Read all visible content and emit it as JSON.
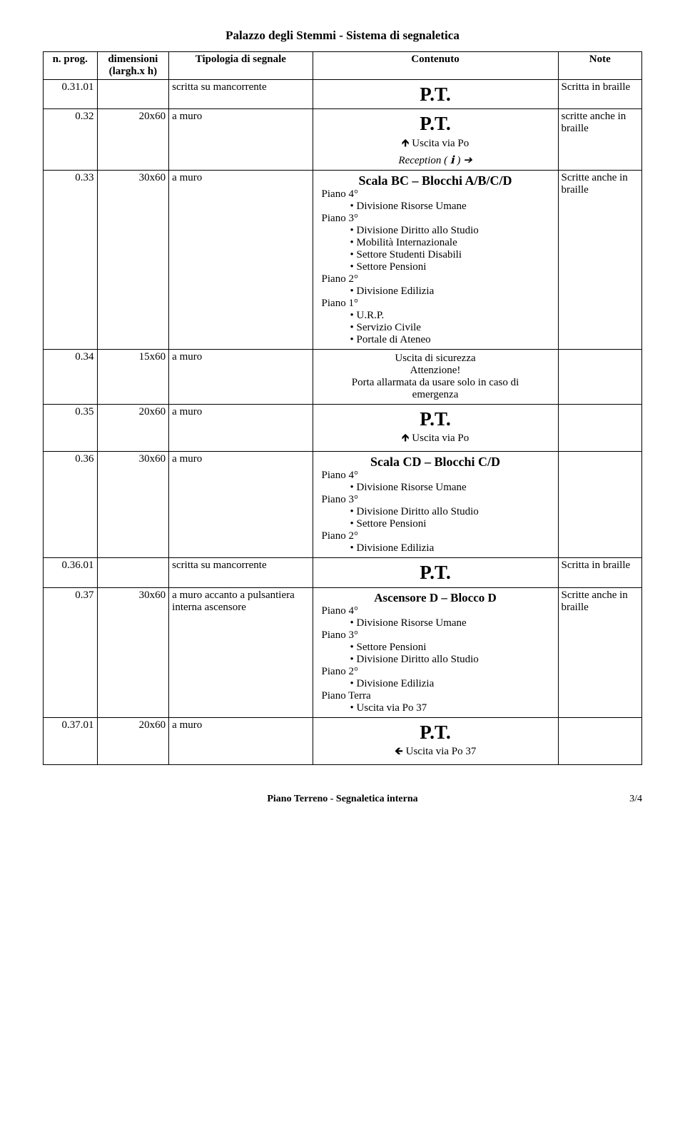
{
  "doc_title": "Palazzo degli Stemmi - Sistema di segnaletica",
  "headers": {
    "n": "n. prog.",
    "dim_a": "dimensioni",
    "dim_b": "(largh.x h)",
    "tip": "Tipologia di segnale",
    "cont": "Contenuto",
    "note": "Note"
  },
  "rows": [
    {
      "n": "0.31.01",
      "dim": "",
      "tip": "scritta su mancorrente",
      "content": {
        "pt": "P.T."
      },
      "note": "Scritta in braille"
    },
    {
      "n": "0.32",
      "dim": "20x60",
      "tip": "a muro",
      "content": {
        "pt": "P.T.",
        "lines": [
          {
            "text": "🡹 Uscita via Po",
            "align": "center"
          },
          {
            "text": "Reception ( ℹ ) ➔",
            "align": "center",
            "style": "font-style:italic;"
          }
        ]
      },
      "note": "scritte anche in braille"
    },
    {
      "n": "0.33",
      "dim": "30x60",
      "tip": "a muro",
      "content": {
        "scala": "Scala BC – Blocchi A/B/C/D",
        "blocks": [
          {
            "piano": "Piano 4°",
            "items": [
              "• Divisione Risorse Umane"
            ]
          },
          {
            "piano": "Piano 3°",
            "items": [
              "• Divisione Diritto allo Studio",
              "• Mobilità Internazionale",
              "• Settore Studenti Disabili",
              "• Settore Pensioni"
            ]
          },
          {
            "piano": "Piano 2°",
            "items": [
              "• Divisione Edilizia"
            ]
          },
          {
            "piano": "Piano 1°",
            "items": [
              "• U.R.P.",
              "• Servizio Civile",
              "• Portale di Ateneo"
            ]
          }
        ]
      },
      "note": "Scritte anche in braille"
    },
    {
      "n": "0.34",
      "dim": "15x60",
      "tip": "a muro",
      "content": {
        "center_lines": [
          "Uscita di sicurezza",
          "Attenzione!",
          "Porta allarmata da usare solo in caso di",
          "emergenza"
        ]
      },
      "note": ""
    },
    {
      "n": "0.35",
      "dim": "20x60",
      "tip": "a muro",
      "content": {
        "pt": "P.T.",
        "lines": [
          {
            "text": "🡹 Uscita via Po",
            "align": "center"
          }
        ]
      },
      "note": ""
    },
    {
      "n": "0.36",
      "dim": "30x60",
      "tip": "a muro",
      "content": {
        "scala": "Scala CD – Blocchi C/D",
        "blocks": [
          {
            "piano": "Piano 4°",
            "items": [
              "• Divisione Risorse Umane"
            ]
          },
          {
            "piano": "Piano 3°",
            "items": [
              "• Divisione Diritto allo Studio",
              "• Settore Pensioni"
            ]
          },
          {
            "piano": "Piano 2°",
            "items": [
              "• Divisione Edilizia"
            ]
          }
        ]
      },
      "note": ""
    },
    {
      "n": "0.36.01",
      "dim": "",
      "tip": "scritta su mancorrente",
      "content": {
        "pt": "P.T."
      },
      "note": "Scritta in braille"
    },
    {
      "n": "0.37",
      "dim": "30x60",
      "tip": "a muro accanto a pulsantiera interna ascensore",
      "content": {
        "asc": "Ascensore D – Blocco D",
        "blocks": [
          {
            "piano": "Piano 4°",
            "items": [
              "• Divisione Risorse Umane"
            ]
          },
          {
            "piano": "Piano 3°",
            "items": [
              "• Settore Pensioni",
              "• Divisione Diritto allo Studio"
            ]
          },
          {
            "piano": "Piano 2°",
            "items": [
              "• Divisione Edilizia"
            ]
          },
          {
            "piano": "Piano Terra",
            "items": [
              "• Uscita via Po 37"
            ]
          }
        ]
      },
      "note": "Scritte anche in braille"
    },
    {
      "n": "0.37.01",
      "dim": "20x60",
      "tip": "a muro",
      "content": {
        "pt": "P.T.",
        "lines": [
          {
            "text": "🡸 Uscita via Po 37",
            "align": "center"
          }
        ]
      },
      "note": ""
    }
  ],
  "footer": {
    "left": "Piano Terreno - Segnaletica interna",
    "right": "3/4"
  }
}
